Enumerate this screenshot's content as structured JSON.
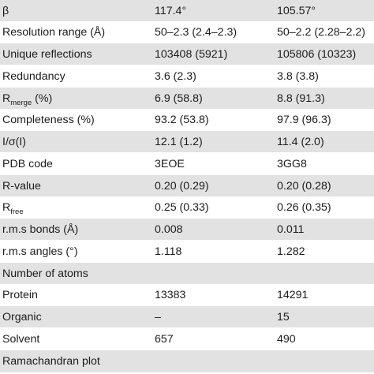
{
  "rows": [
    {
      "label": "β",
      "v1": "117.4°",
      "v2": "105.57°"
    },
    {
      "label": "Resolution range (Å)",
      "v1": "50–2.3 (2.4–2.3)",
      "v2": "50–2.2 (2.28–2.2)"
    },
    {
      "label": "Unique reflections",
      "v1": "103408 (5921)",
      "v2": "105806 (10323)"
    },
    {
      "label": "Redundancy",
      "v1": "3.6 (2.3)",
      "v2": "3.8 (3.8)"
    },
    {
      "label_main": "R",
      "label_sub": "merge",
      "label_tail": " (%)",
      "v1": "6.9 (58.8)",
      "v2": "8.8 (91.3)"
    },
    {
      "label": "Completeness (%)",
      "v1": "93.2 (53.8)",
      "v2": "97.9 (96.3)"
    },
    {
      "label": "I/σ(I)",
      "v1": "12.1 (1.2)",
      "v2": "11.4 (2.0)"
    },
    {
      "label": "PDB code",
      "v1": "3EOE",
      "v2": "3GG8"
    },
    {
      "label": "R-value",
      "v1": "0.20 (0.29)",
      "v2": "0.20 (0.28)"
    },
    {
      "label_main": "R",
      "label_sub": "free",
      "label_tail": "",
      "v1": "0.25 (0.33)",
      "v2": "0.26 (0.35)"
    },
    {
      "label": "r.m.s bonds (Å)",
      "v1": "0.008",
      "v2": "0.011"
    },
    {
      "label": "r.m.s angles (°)",
      "v1": "1.118",
      "v2": "1.282"
    },
    {
      "label": "Number of atoms",
      "v1": "",
      "v2": ""
    },
    {
      "label": "Protein",
      "v1": "13383",
      "v2": "14291"
    },
    {
      "label": "Organic",
      "v1": "–",
      "v2": "15"
    },
    {
      "label": "Solvent",
      "v1": "657",
      "v2": "490"
    },
    {
      "label": "Ramachandran plot",
      "v1": "",
      "v2": ""
    }
  ],
  "colors": {
    "shade": "#e2e2e2",
    "text": "#1c1c1c",
    "rule": "#1a1a1a"
  }
}
